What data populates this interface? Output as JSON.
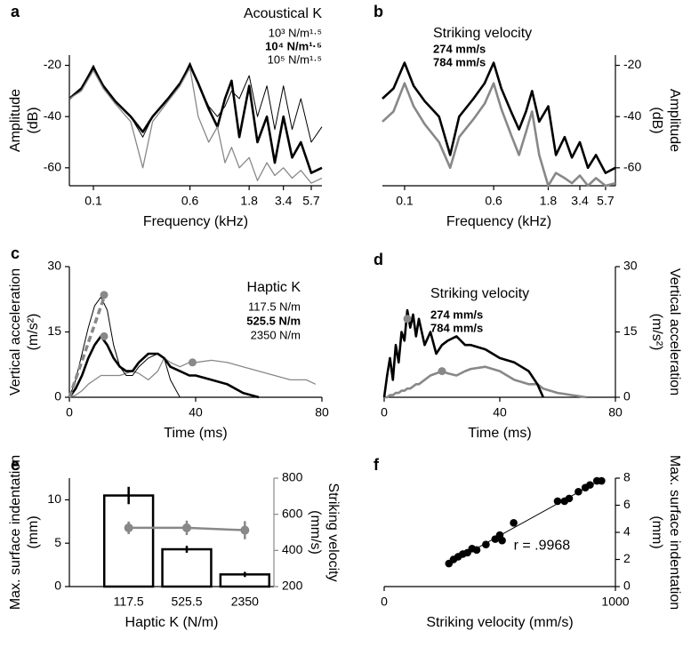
{
  "chart_data": [
    {
      "type": "line",
      "label": "a",
      "title": "Acoustical K",
      "xlabel": "Frequency (kHz)",
      "ylabel": [
        "Amplitude",
        "(dB)"
      ],
      "xscale": "log",
      "xlim": [
        0.064,
        6.95
      ],
      "xticks": [
        0.1,
        0.6,
        1.8,
        3.4,
        5.7
      ],
      "ylim": [
        -67,
        -16
      ],
      "yticks": [
        -20,
        -40,
        -60
      ],
      "yaxis": "left",
      "x": [
        0.064,
        0.08,
        0.1,
        0.12,
        0.15,
        0.2,
        0.25,
        0.3,
        0.4,
        0.5,
        0.6,
        0.7,
        0.85,
        1.0,
        1.15,
        1.3,
        1.5,
        1.8,
        2.1,
        2.5,
        2.9,
        3.4,
        4.0,
        4.7,
        5.7,
        6.95
      ],
      "series": [
        {
          "name": "10³ N/m¹·⁵",
          "color": "#000000",
          "width": 1,
          "bold": false,
          "values": [
            -33,
            -29,
            -20,
            -28,
            -34,
            -40,
            -48,
            -40,
            -33,
            -27,
            -19,
            -27,
            -36,
            -40,
            -36,
            -30,
            -33,
            -24,
            -40,
            -28,
            -45,
            -28,
            -45,
            -33,
            -50,
            -44
          ]
        },
        {
          "name": "10⁴ N/m¹·⁵",
          "color": "#000000",
          "width": 2.6,
          "bold": true,
          "values": [
            -33,
            -29,
            -21,
            -28,
            -34,
            -40,
            -46,
            -40,
            -33,
            -27,
            -20,
            -27,
            -37,
            -44,
            -33,
            -26,
            -48,
            -28,
            -50,
            -40,
            -58,
            -40,
            -56,
            -50,
            -62,
            -60
          ]
        },
        {
          "name": "10⁵ N/m¹·⁵",
          "color": "#888888",
          "width": 1.3,
          "bold": false,
          "values": [
            -33,
            -30,
            -22,
            -29,
            -35,
            -42,
            -60,
            -42,
            -34,
            -28,
            -21,
            -40,
            -50,
            -44,
            -58,
            -52,
            -60,
            -56,
            -65,
            -58,
            -63,
            -60,
            -64,
            -61,
            -66,
            -64
          ]
        }
      ]
    },
    {
      "type": "line",
      "label": "b",
      "title": "Striking velocity",
      "xlabel": "Frequency (kHz)",
      "ylabel": [
        "Amplitude",
        "(dB)"
      ],
      "xscale": "log",
      "xlim": [
        0.064,
        6.95
      ],
      "xticks": [
        0.1,
        0.6,
        1.8,
        3.4,
        5.7
      ],
      "ylim": [
        -67,
        -16
      ],
      "yticks": [
        -20,
        -40,
        -60
      ],
      "yaxis": "right",
      "x": [
        0.064,
        0.08,
        0.1,
        0.12,
        0.15,
        0.2,
        0.25,
        0.3,
        0.4,
        0.5,
        0.6,
        0.7,
        0.85,
        1.0,
        1.15,
        1.3,
        1.5,
        1.8,
        2.1,
        2.5,
        2.9,
        3.4,
        4.0,
        4.7,
        5.7,
        6.95
      ],
      "series": [
        {
          "name": "274 mm/s",
          "color": "#888888",
          "width": 2.6,
          "bold": true,
          "values": [
            -42,
            -38,
            -27,
            -36,
            -43,
            -50,
            -60,
            -48,
            -41,
            -35,
            -27,
            -37,
            -47,
            -55,
            -46,
            -38,
            -55,
            -67,
            -62,
            -64,
            -66,
            -63,
            -67,
            -64,
            -67,
            -66
          ]
        },
        {
          "name": "784 mm/s",
          "color": "#000000",
          "width": 2.6,
          "bold": true,
          "values": [
            -33,
            -29,
            -19,
            -28,
            -34,
            -40,
            -55,
            -40,
            -33,
            -27,
            -19,
            -29,
            -38,
            -45,
            -38,
            -30,
            -42,
            -36,
            -55,
            -48,
            -56,
            -50,
            -60,
            -55,
            -62,
            -60
          ]
        }
      ]
    },
    {
      "type": "line",
      "label": "c",
      "title": "Haptic K",
      "xlabel": "Time (ms)",
      "ylabel": [
        "Vertical acceleration",
        "(m/s²)"
      ],
      "xlim": [
        0,
        80
      ],
      "xticks": [
        0,
        40,
        80
      ],
      "ylim": [
        0,
        30
      ],
      "yticks": [
        0,
        15,
        30
      ],
      "yaxis": "left",
      "x": [
        0,
        2,
        4,
        6,
        8,
        10,
        12,
        14,
        16,
        18,
        20,
        22,
        25,
        28,
        30,
        32,
        35,
        38,
        40,
        45,
        50,
        55,
        60,
        65,
        70,
        75,
        78
      ],
      "series": [
        {
          "name": "117.5 N/m",
          "color": "#888888",
          "width": 1.3,
          "bold": false,
          "values": [
            0,
            0.5,
            1.5,
            3,
            4,
            5,
            5,
            5,
            5,
            5.5,
            6,
            5.5,
            4,
            6,
            9,
            8,
            7,
            8,
            8,
            8.5,
            8,
            7,
            6,
            5,
            4,
            4,
            3
          ]
        },
        {
          "name": "525.5 N/m",
          "color": "#000000",
          "width": 2.6,
          "bold": true,
          "values": [
            0,
            2,
            5,
            9,
            12,
            14,
            12,
            9,
            7,
            6,
            6,
            8,
            10,
            10,
            9,
            7,
            6,
            5,
            5,
            4,
            3,
            1,
            0,
            null,
            null,
            null,
            null
          ]
        },
        {
          "name": "2350 N/m",
          "color": "#000000",
          "width": 1,
          "bold": false,
          "values": [
            0,
            4,
            10,
            16,
            21,
            23,
            20,
            12,
            7,
            5,
            5,
            7,
            9,
            10,
            9,
            4,
            0,
            null,
            null,
            null,
            null,
            null,
            null,
            null,
            null,
            null,
            null
          ]
        }
      ],
      "fit": {
        "x": [
          0,
          11
        ],
        "values": [
          0,
          23
        ]
      },
      "markers": {
        "x": [
          11,
          11,
          39
        ],
        "values": [
          23.5,
          14,
          8
        ]
      }
    },
    {
      "type": "line",
      "label": "d",
      "title": "Striking velocity",
      "xlabel": "Time (ms)",
      "ylabel": [
        "Vertical acceleration",
        "(m/s²)"
      ],
      "xlim": [
        0,
        80
      ],
      "xticks": [
        0,
        40,
        80
      ],
      "ylim": [
        0,
        30
      ],
      "yticks": [
        0,
        15,
        30
      ],
      "yaxis": "right",
      "x": [
        0,
        1,
        2,
        3,
        4,
        5,
        6,
        7,
        8,
        9,
        10,
        11,
        12,
        14,
        16,
        18,
        20,
        22,
        25,
        28,
        30,
        35,
        40,
        45,
        50,
        53,
        55,
        60,
        65,
        70
      ],
      "series": [
        {
          "name": "274 mm/s",
          "color": "#888888",
          "width": 2.6,
          "bold": true,
          "values": [
            0,
            0,
            0.5,
            0.5,
            1,
            1,
            1.5,
            1.5,
            2,
            2,
            2.5,
            3,
            3,
            4,
            5,
            5.5,
            6,
            5.5,
            5,
            6,
            6.5,
            7,
            6,
            4,
            3,
            3,
            2,
            1,
            0.5,
            0
          ]
        },
        {
          "name": "784 mm/s",
          "color": "#000000",
          "width": 2.6,
          "bold": true,
          "values": [
            0,
            5,
            9,
            4,
            12,
            8,
            15,
            13,
            20,
            16,
            19,
            14,
            18,
            12,
            15,
            10,
            12,
            13,
            14,
            12,
            12,
            11,
            9,
            8,
            6,
            3,
            0,
            null,
            null,
            null
          ]
        }
      ],
      "markers": {
        "x": [
          8,
          20
        ],
        "values": [
          18,
          6
        ]
      }
    },
    {
      "type": "bar",
      "label": "e",
      "xlabel": "Haptic K (N/m)",
      "ylabel": [
        "Max. surface indentation",
        "(mm)"
      ],
      "y2label": [
        "Striking velocity",
        "(mm/s)"
      ],
      "categories": [
        "117.5",
        "525.5",
        "2350"
      ],
      "ylim": [
        0,
        12.5
      ],
      "yticks": [
        0,
        5,
        10
      ],
      "y2lim": [
        200,
        800
      ],
      "y2ticks": [
        200,
        400,
        600,
        800
      ],
      "yaxis": "left",
      "series": [
        {
          "kind": "bar",
          "color": "#000000",
          "values": [
            10.5,
            4.3,
            1.4
          ],
          "errors": [
            1,
            0.4,
            0.3
          ]
        },
        {
          "kind": "line",
          "axis": "y2",
          "color": "#888888",
          "values": [
            525,
            525,
            512
          ],
          "errors": [
            35,
            40,
            50
          ]
        }
      ]
    },
    {
      "type": "scatter",
      "label": "f",
      "xlabel": "Striking velocity (mm/s)",
      "ylabel": [
        "Max. surface indentation",
        "(mm)"
      ],
      "xlim": [
        0,
        1000
      ],
      "xticks": [
        0,
        1000
      ],
      "ylim": [
        0,
        8
      ],
      "yticks": [
        0,
        2,
        4,
        6,
        8
      ],
      "yaxis": "right",
      "color": "#000000",
      "annotation": "r = .9968",
      "x": [
        280,
        300,
        320,
        340,
        360,
        380,
        400,
        440,
        480,
        500,
        510,
        560,
        750,
        780,
        800,
        840,
        870,
        890,
        920,
        940
      ],
      "values": [
        1.7,
        2,
        2.2,
        2.4,
        2.5,
        2.8,
        2.7,
        3.1,
        3.5,
        3.8,
        3.4,
        4.7,
        6.3,
        6.3,
        6.5,
        7,
        7.3,
        7.5,
        7.8,
        7.8
      ],
      "fit": {
        "x": [
          270,
          950
        ],
        "values": [
          1.6,
          8
        ]
      }
    }
  ]
}
